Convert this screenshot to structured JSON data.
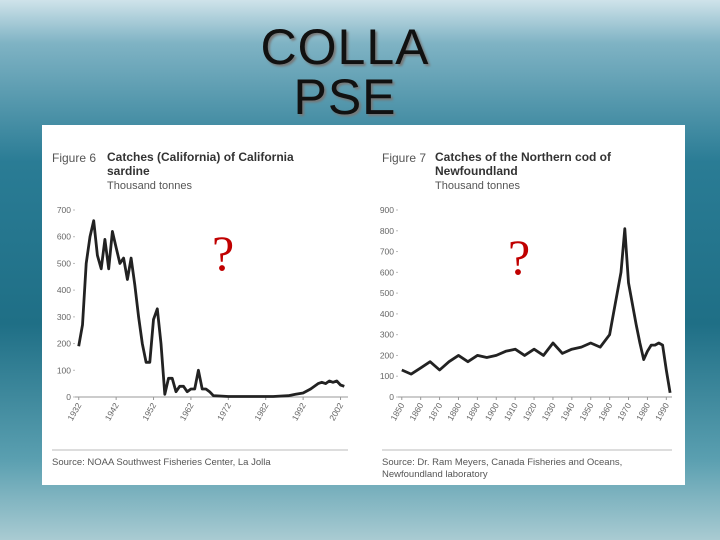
{
  "title": "COLLA PSE",
  "annotations": [
    "?",
    "?"
  ],
  "chart_data": [
    {
      "type": "line",
      "figure": "Figure 6",
      "title": "Catches (California) of California sardine",
      "subtitle": "Thousand tonnes",
      "source": "Source: NOAA Southwest Fisheries Center, La Jolla",
      "color": "#222222",
      "x": [
        1932,
        1933,
        1934,
        1935,
        1936,
        1937,
        1938,
        1939,
        1940,
        1941,
        1942,
        1943,
        1944,
        1945,
        1946,
        1947,
        1948,
        1949,
        1950,
        1951,
        1952,
        1953,
        1954,
        1955,
        1956,
        1957,
        1958,
        1959,
        1960,
        1961,
        1962,
        1963,
        1964,
        1965,
        1966,
        1967,
        1968,
        1972,
        1976,
        1980,
        1984,
        1988,
        1990,
        1992,
        1994,
        1996,
        1997,
        1998,
        1999,
        2000,
        2001,
        2002,
        2003
      ],
      "values": [
        190,
        270,
        500,
        600,
        660,
        530,
        480,
        590,
        480,
        620,
        560,
        500,
        520,
        440,
        520,
        420,
        300,
        200,
        130,
        130,
        290,
        330,
        200,
        10,
        70,
        70,
        20,
        40,
        40,
        20,
        30,
        30,
        100,
        30,
        30,
        20,
        5,
        2,
        2,
        2,
        2,
        5,
        10,
        15,
        30,
        50,
        55,
        50,
        60,
        55,
        60,
        45,
        40
      ],
      "xlim": [
        1931,
        2004
      ],
      "ylim": [
        0,
        700
      ],
      "xticks": [
        1932,
        1942,
        1952,
        1962,
        1972,
        1982,
        1992,
        2002
      ],
      "yticks": [
        0,
        100,
        200,
        300,
        400,
        500,
        600,
        700
      ]
    },
    {
      "type": "line",
      "figure": "Figure 7",
      "title": "Catches of the Northern cod of Newfoundland",
      "subtitle": "Thousand tonnes",
      "source": "Source: Dr. Ram Meyers, Canada Fisheries and Oceans, Newfoundland laboratory",
      "color": "#222222",
      "x": [
        1850,
        1855,
        1860,
        1865,
        1870,
        1875,
        1880,
        1885,
        1890,
        1895,
        1900,
        1905,
        1910,
        1915,
        1920,
        1925,
        1930,
        1935,
        1940,
        1945,
        1950,
        1955,
        1960,
        1962,
        1964,
        1966,
        1968,
        1970,
        1972,
        1974,
        1976,
        1978,
        1980,
        1982,
        1984,
        1986,
        1988,
        1990,
        1992
      ],
      "values": [
        130,
        110,
        140,
        170,
        130,
        170,
        200,
        170,
        200,
        190,
        200,
        220,
        230,
        200,
        230,
        200,
        260,
        210,
        230,
        240,
        260,
        240,
        300,
        400,
        500,
        600,
        810,
        550,
        450,
        350,
        260,
        180,
        220,
        250,
        250,
        260,
        250,
        130,
        20
      ],
      "xlim": [
        1848,
        1993
      ],
      "ylim": [
        0,
        900
      ],
      "xticks": [
        1850,
        1860,
        1870,
        1880,
        1890,
        1900,
        1910,
        1920,
        1930,
        1940,
        1950,
        1960,
        1970,
        1980,
        1990
      ],
      "yticks": [
        0,
        100,
        200,
        300,
        400,
        500,
        600,
        700,
        800,
        900
      ]
    }
  ]
}
